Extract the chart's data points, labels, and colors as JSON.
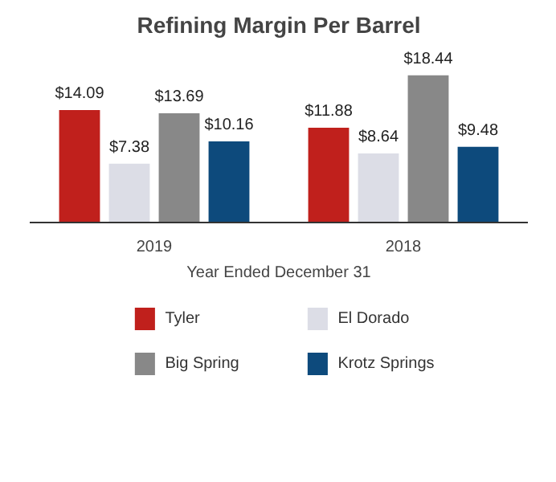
{
  "chart_data": {
    "type": "bar",
    "title": "Refining Margin Per Barrel",
    "xlabel": "Year Ended December 31",
    "categories": [
      "2019",
      "2018"
    ],
    "series": [
      {
        "name": "Tyler",
        "color": "#c0201c",
        "values": [
          14.09,
          11.88
        ],
        "value_labels": [
          "$14.09",
          "$11.88"
        ]
      },
      {
        "name": "El Dorado",
        "color": "#dcdde6",
        "values": [
          7.38,
          8.64
        ],
        "value_labels": [
          "$7.38",
          "$8.64"
        ]
      },
      {
        "name": "Big Spring",
        "color": "#888888",
        "values": [
          13.69,
          18.44
        ],
        "value_labels": [
          "$13.69",
          "$18.44"
        ]
      },
      {
        "name": "Krotz Springs",
        "color": "#0d4a7c",
        "values": [
          10.16,
          9.48
        ],
        "value_labels": [
          "$10.16",
          "$9.48"
        ]
      }
    ],
    "legend": "bottom"
  }
}
